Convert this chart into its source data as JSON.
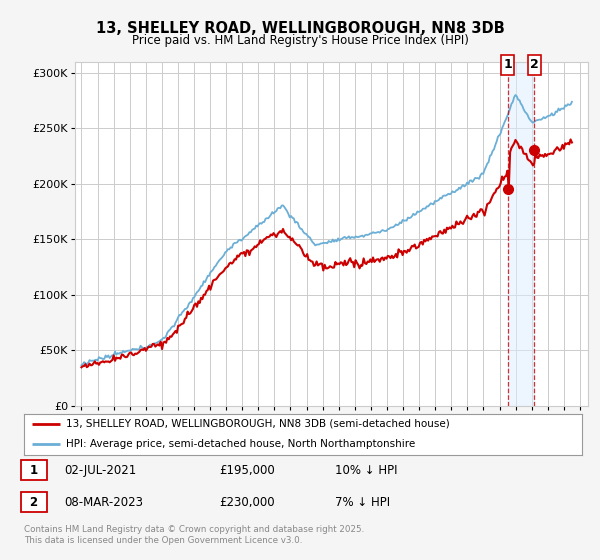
{
  "title": "13, SHELLEY ROAD, WELLINGBOROUGH, NN8 3DB",
  "subtitle": "Price paid vs. HM Land Registry's House Price Index (HPI)",
  "ylim": [
    0,
    310000
  ],
  "yticks": [
    0,
    50000,
    100000,
    150000,
    200000,
    250000,
    300000
  ],
  "ytick_labels": [
    "£0",
    "£50K",
    "£100K",
    "£150K",
    "£200K",
    "£250K",
    "£300K"
  ],
  "xlim_start": 1994.6,
  "xlim_end": 2026.5,
  "xticks": [
    1995,
    1996,
    1997,
    1998,
    1999,
    2000,
    2001,
    2002,
    2003,
    2004,
    2005,
    2006,
    2007,
    2008,
    2009,
    2010,
    2011,
    2012,
    2013,
    2014,
    2015,
    2016,
    2017,
    2018,
    2019,
    2020,
    2021,
    2022,
    2023,
    2024,
    2025,
    2026
  ],
  "bg_color": "#f5f5f5",
  "plot_bg_color": "#ffffff",
  "grid_color": "#cccccc",
  "hpi_color": "#6baed6",
  "hpi_fill_color": "#c9dff0",
  "price_color": "#cc0000",
  "shade_color": "#ddeeff",
  "sale1_x": 2021.5,
  "sale1_y": 195000,
  "sale2_x": 2023.17,
  "sale2_y": 230000,
  "sale1_label": "1",
  "sale2_label": "2",
  "legend_line1": "13, SHELLEY ROAD, WELLINGBOROUGH, NN8 3DB (semi-detached house)",
  "legend_line2": "HPI: Average price, semi-detached house, North Northamptonshire",
  "table_row1": [
    "1",
    "02-JUL-2021",
    "£195,000",
    "10% ↓ HPI"
  ],
  "table_row2": [
    "2",
    "08-MAR-2023",
    "£230,000",
    "7% ↓ HPI"
  ],
  "footer": "Contains HM Land Registry data © Crown copyright and database right 2025.\nThis data is licensed under the Open Government Licence v3.0."
}
